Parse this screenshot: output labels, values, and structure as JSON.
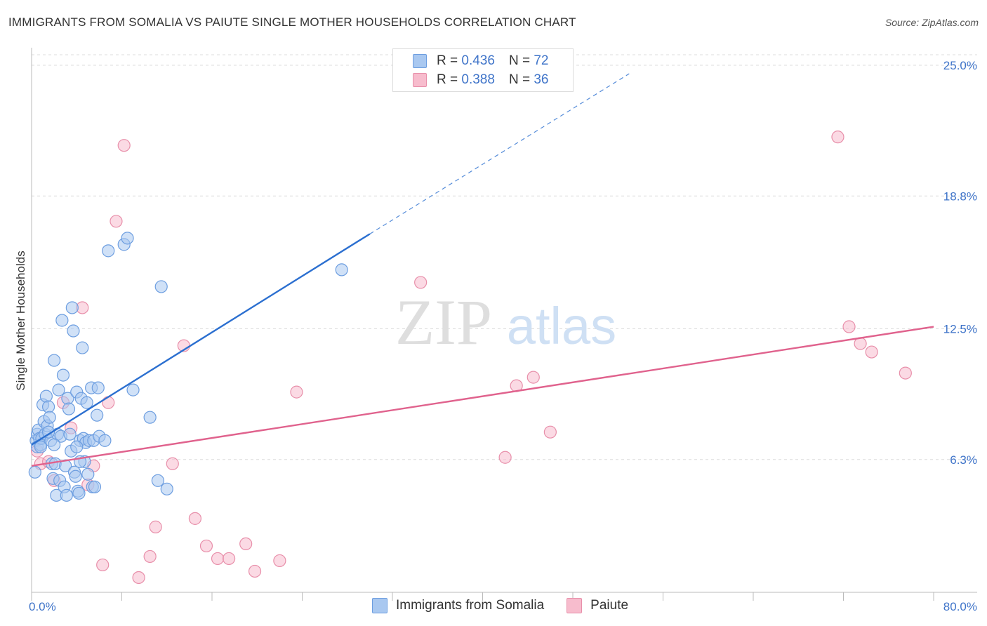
{
  "header": {
    "title": "IMMIGRANTS FROM SOMALIA VS PAIUTE SINGLE MOTHER HOUSEHOLDS CORRELATION CHART",
    "source": "Source: ZipAtlas.com"
  },
  "legend": {
    "r_label": "R =",
    "n_label": "N =",
    "series": [
      {
        "r": "0.436",
        "n": "72"
      },
      {
        "r": "0.388",
        "n": "36"
      }
    ]
  },
  "watermark": {
    "zip": "ZIP",
    "atlas": "atlas"
  },
  "colors": {
    "blue_fill": "#a9c8f0",
    "blue_stroke": "#6d9ee0",
    "blue_line": "#2b6fd0",
    "pink_fill": "#f7bccd",
    "pink_stroke": "#e88faa",
    "pink_line": "#e0628d",
    "tick_text": "#3f74c9",
    "grid": "#dcdcdc"
  },
  "chart_data": {
    "type": "scatter",
    "title": "IMMIGRANTS FROM SOMALIA VS PAIUTE SINGLE MOTHER HOUSEHOLDS CORRELATION CHART",
    "xlabel": "",
    "ylabel": "Single Mother Households",
    "xlim": [
      0,
      80
    ],
    "ylim": [
      0,
      25.5
    ],
    "x_tick_labels": [
      {
        "value": 0,
        "label": "0.0%"
      },
      {
        "value": 80,
        "label": "80.0%"
      }
    ],
    "y_ticks": [
      {
        "value": 6.3,
        "label": "6.3%"
      },
      {
        "value": 12.5,
        "label": "12.5%"
      },
      {
        "value": 18.8,
        "label": "18.8%"
      },
      {
        "value": 25.0,
        "label": "25.0%"
      }
    ],
    "x_minor_ticks": [
      0,
      8,
      16,
      24,
      32,
      40,
      48,
      56,
      64,
      72,
      80
    ],
    "series": [
      {
        "name": "Immigrants from Somalia",
        "color": "#a9c8f0",
        "trend": {
          "x0": 0,
          "y0": 7.0,
          "x1": 30,
          "y1": 17.0,
          "dashed_to_x": 53,
          "dashed_to_y": 24.6
        },
        "points": [
          [
            0.3,
            5.7
          ],
          [
            0.4,
            7.2
          ],
          [
            0.5,
            7.5
          ],
          [
            0.5,
            6.9
          ],
          [
            0.6,
            7.7
          ],
          [
            0.7,
            7.3
          ],
          [
            0.8,
            7.0
          ],
          [
            0.9,
            7.3
          ],
          [
            1.0,
            8.9
          ],
          [
            1.1,
            8.1
          ],
          [
            1.2,
            7.5
          ],
          [
            1.3,
            9.3
          ],
          [
            1.4,
            7.9
          ],
          [
            1.5,
            8.8
          ],
          [
            1.6,
            8.3
          ],
          [
            1.7,
            7.2
          ],
          [
            1.8,
            6.1
          ],
          [
            1.9,
            5.4
          ],
          [
            2.0,
            11.0
          ],
          [
            2.1,
            6.1
          ],
          [
            2.2,
            4.6
          ],
          [
            2.3,
            7.5
          ],
          [
            2.4,
            9.6
          ],
          [
            2.5,
            5.3
          ],
          [
            2.6,
            7.4
          ],
          [
            2.7,
            12.9
          ],
          [
            2.8,
            10.3
          ],
          [
            2.9,
            5.0
          ],
          [
            3.0,
            6.0
          ],
          [
            3.1,
            4.6
          ],
          [
            3.2,
            9.2
          ],
          [
            3.3,
            8.7
          ],
          [
            3.4,
            7.5
          ],
          [
            3.5,
            6.7
          ],
          [
            3.6,
            13.5
          ],
          [
            3.7,
            12.4
          ],
          [
            3.8,
            5.7
          ],
          [
            3.9,
            5.5
          ],
          [
            4.0,
            9.5
          ],
          [
            4.1,
            4.8
          ],
          [
            4.2,
            4.7
          ],
          [
            4.3,
            7.2
          ],
          [
            4.4,
            9.2
          ],
          [
            4.5,
            11.6
          ],
          [
            4.6,
            7.3
          ],
          [
            4.7,
            6.2
          ],
          [
            4.8,
            7.1
          ],
          [
            4.9,
            9.0
          ],
          [
            5.0,
            5.6
          ],
          [
            5.1,
            7.2
          ],
          [
            5.3,
            9.7
          ],
          [
            5.4,
            5.0
          ],
          [
            5.5,
            7.2
          ],
          [
            5.6,
            5.0
          ],
          [
            5.8,
            8.4
          ],
          [
            6.0,
            7.4
          ],
          [
            6.5,
            7.2
          ],
          [
            5.9,
            9.7
          ],
          [
            8.2,
            16.5
          ],
          [
            6.8,
            16.2
          ],
          [
            8.5,
            16.8
          ],
          [
            9.0,
            9.6
          ],
          [
            10.5,
            8.3
          ],
          [
            11.2,
            5.3
          ],
          [
            12.0,
            4.9
          ],
          [
            11.5,
            14.5
          ],
          [
            27.5,
            15.3
          ],
          [
            4.3,
            6.2
          ],
          [
            4.0,
            6.9
          ],
          [
            2.0,
            7.0
          ],
          [
            1.5,
            7.6
          ],
          [
            0.8,
            6.9
          ]
        ]
      },
      {
        "name": "Paiute",
        "color": "#f7bccd",
        "trend": {
          "x0": 0,
          "y0": 6.0,
          "x1": 80,
          "y1": 12.6
        },
        "points": [
          [
            0.5,
            6.7
          ],
          [
            0.8,
            6.1
          ],
          [
            1.5,
            6.2
          ],
          [
            2.0,
            5.3
          ],
          [
            2.8,
            9.0
          ],
          [
            3.5,
            7.8
          ],
          [
            4.5,
            13.5
          ],
          [
            5.0,
            5.1
          ],
          [
            5.5,
            6.0
          ],
          [
            6.3,
            1.3
          ],
          [
            6.8,
            9.0
          ],
          [
            7.5,
            17.6
          ],
          [
            8.2,
            21.2
          ],
          [
            9.5,
            0.7
          ],
          [
            10.5,
            1.7
          ],
          [
            11.0,
            3.1
          ],
          [
            12.5,
            6.1
          ],
          [
            13.5,
            11.7
          ],
          [
            14.5,
            3.5
          ],
          [
            15.5,
            2.2
          ],
          [
            16.5,
            1.6
          ],
          [
            17.5,
            1.6
          ],
          [
            19.0,
            2.3
          ],
          [
            19.8,
            1.0
          ],
          [
            22.0,
            1.5
          ],
          [
            23.5,
            9.5
          ],
          [
            34.5,
            14.7
          ],
          [
            42.0,
            6.4
          ],
          [
            43.0,
            9.8
          ],
          [
            44.5,
            10.2
          ],
          [
            46.0,
            7.6
          ],
          [
            71.5,
            21.6
          ],
          [
            72.5,
            12.6
          ],
          [
            73.5,
            11.8
          ],
          [
            74.5,
            11.4
          ],
          [
            77.5,
            10.4
          ]
        ]
      }
    ]
  },
  "bottom_legend": {
    "items": [
      {
        "label": "Immigrants from Somalia"
      },
      {
        "label": "Paiute"
      }
    ]
  }
}
